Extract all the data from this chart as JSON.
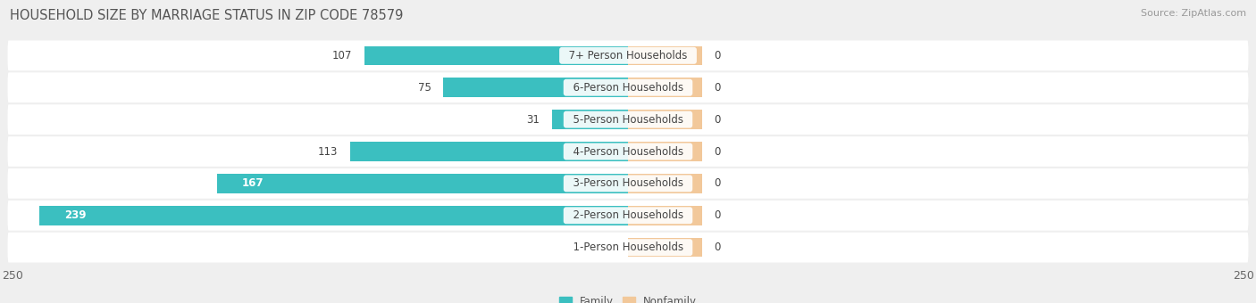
{
  "title": "HOUSEHOLD SIZE BY MARRIAGE STATUS IN ZIP CODE 78579",
  "source": "Source: ZipAtlas.com",
  "categories": [
    "1-Person Households",
    "2-Person Households",
    "3-Person Households",
    "4-Person Households",
    "5-Person Households",
    "6-Person Households",
    "7+ Person Households"
  ],
  "family_values": [
    0,
    239,
    167,
    113,
    31,
    75,
    107
  ],
  "nonfamily_values": [
    0,
    0,
    0,
    0,
    0,
    0,
    0
  ],
  "family_color": "#3bbfc0",
  "nonfamily_color": "#f2c89a",
  "xlim": 250,
  "nonfamily_bar_width": 30,
  "bar_height": 0.6,
  "bg_color": "#efefef",
  "title_fontsize": 10.5,
  "source_fontsize": 8,
  "label_fontsize": 8.5,
  "tick_fontsize": 9,
  "inside_label_threshold": 160
}
